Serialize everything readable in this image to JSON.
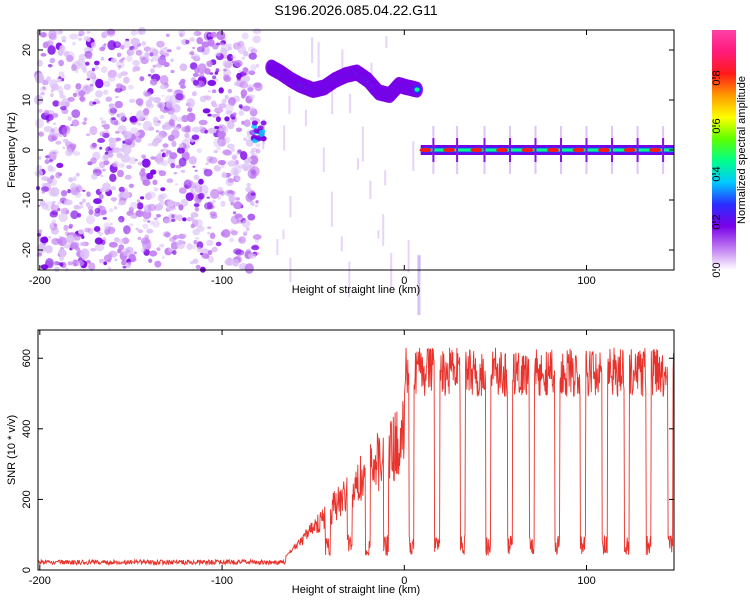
{
  "title": "S196.2026.085.04.22.G11",
  "colors": {
    "snr_line": "#e8322b",
    "frame": "#000000",
    "colormap": [
      "#ffffff",
      "#c07cf2",
      "#7a00e8",
      "#2a2cff",
      "#00c8ff",
      "#00ff8a",
      "#5cff00",
      "#ffff00",
      "#ff9a00",
      "#ff1a1a",
      "#ff1a7a",
      "#ff40a8"
    ]
  },
  "chart_data": [
    {
      "type": "heatmap",
      "name": "spectrogram",
      "xlabel": "Height of straight line (km)",
      "ylabel": "Frequency (Hz)",
      "xlim": [
        -201,
        148
      ],
      "ylim": [
        -24,
        24
      ],
      "xticks": [
        -200,
        -100,
        0,
        100
      ],
      "yticks": [
        -20,
        -10,
        0,
        10,
        20
      ],
      "colorbar": {
        "label": "Normalized spectral amplitude",
        "range": [
          0,
          1
        ],
        "ticks": [
          "0.0",
          "0.2",
          "0.4",
          "0.6",
          "0.8"
        ]
      },
      "features": {
        "noise_region_x": [
          -201,
          -80
        ],
        "cluster": {
          "x": [
            -84,
            -77
          ],
          "y": [
            1.5,
            5.5
          ]
        },
        "drifting_band": [
          {
            "x": -73,
            "y": 16.5
          },
          {
            "x": -68,
            "y": 15.5
          },
          {
            "x": -62,
            "y": 14
          },
          {
            "x": -57,
            "y": 13
          },
          {
            "x": -50,
            "y": 12
          },
          {
            "x": -44,
            "y": 12.5
          },
          {
            "x": -38,
            "y": 14
          },
          {
            "x": -32,
            "y": 15
          },
          {
            "x": -26,
            "y": 15.5
          },
          {
            "x": -20,
            "y": 14
          },
          {
            "x": -14,
            "y": 11.5
          },
          {
            "x": -8,
            "y": 11
          },
          {
            "x": -3,
            "y": 13
          },
          {
            "x": 2,
            "y": 12.5
          },
          {
            "x": 8,
            "y": 12
          }
        ],
        "carrier": {
          "x": [
            9,
            148
          ],
          "y": 0
        },
        "carrier_peaks_x": [
          16,
          29,
          44,
          58,
          72,
          86,
          100,
          114,
          128,
          142
        ]
      }
    },
    {
      "type": "line",
      "name": "snr",
      "xlabel": "Height of straight line (km)",
      "ylabel": "SNR (10 * v/v)",
      "xlim": [
        -201,
        148
      ],
      "ylim": [
        0,
        680
      ],
      "xticks": [
        -200,
        -100,
        0,
        100
      ],
      "yticks": [
        0,
        200,
        400,
        600
      ],
      "profile": {
        "noise_floor": {
          "x": [
            -201,
            -65
          ],
          "mean": 22,
          "spread": 14
        },
        "ramp_x": [
          -65,
          0
        ],
        "high_plateau_mean": 560,
        "dropouts_x": [
          -42,
          -30,
          -20,
          -10,
          4,
          18,
          32,
          46,
          58,
          70,
          84,
          98,
          110,
          122,
          134,
          146
        ]
      }
    }
  ]
}
